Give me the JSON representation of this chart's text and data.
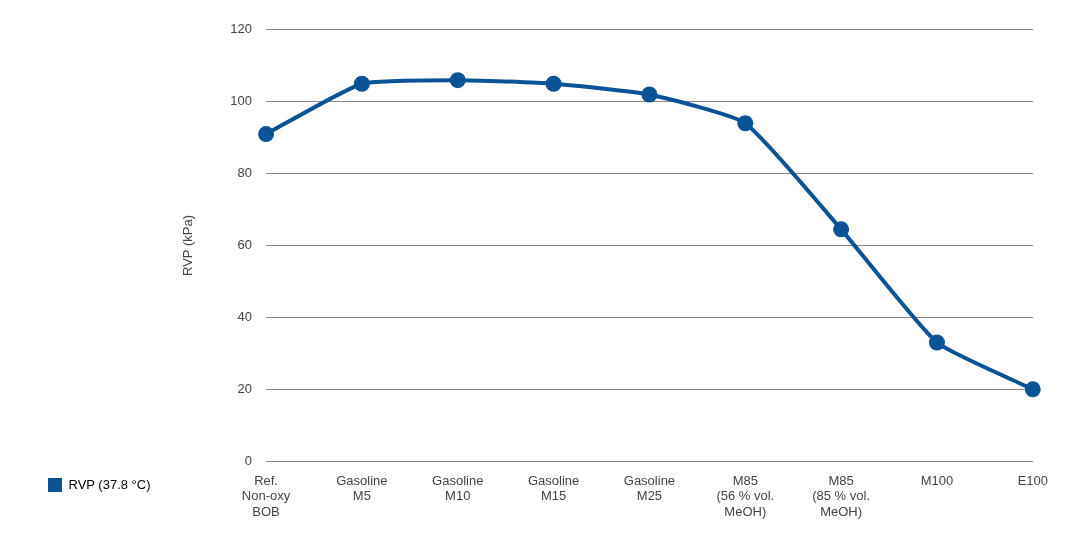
{
  "chart_data": {
    "type": "line",
    "ylabel": "RVP (kPa)",
    "categories": [
      "Ref.\nNon-oxy\nBOB",
      "Gasoline\nM5",
      "Gasoline\nM10",
      "Gasoline\nM15",
      "Gasoline\nM25",
      "M85\n(56 % vol.\nMeOH)",
      "M85\n(85 % vol.\nMeOH)",
      "M100",
      "E100"
    ],
    "series": [
      {
        "name": "RVP (37.8 °C)",
        "color": "#0b5394",
        "values": [
          91,
          105,
          106,
          105,
          102,
          94,
          64.5,
          33,
          20
        ]
      }
    ],
    "ylim": [
      0,
      120
    ],
    "yticks": [
      0,
      20,
      40,
      60,
      80,
      100,
      120
    ],
    "grid": "y",
    "legend": "bottom left",
    "marker": "circle",
    "line_style": "solid"
  }
}
